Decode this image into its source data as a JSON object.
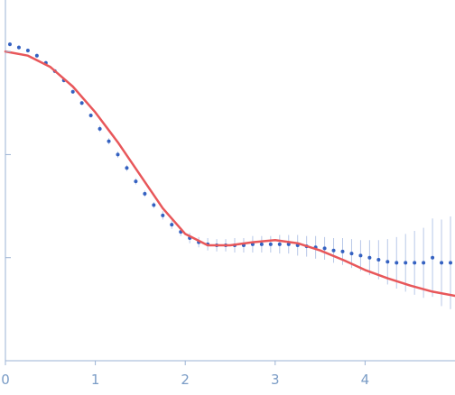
{
  "chart_data": {
    "type": "scatter",
    "title": "",
    "xlabel": "",
    "ylabel": "",
    "xlim": [
      0,
      5
    ],
    "ylim": [
      0,
      3.5
    ],
    "x_tick_labels": [
      "0",
      "1",
      "2",
      "3",
      "4"
    ],
    "x_ticks": [
      0,
      1,
      2,
      3,
      4
    ],
    "y_ticks": [
      0,
      1,
      2,
      3
    ],
    "grid": false,
    "legend": "none",
    "colors": {
      "points": "#3461c1",
      "error_bars": "#b8c8e8",
      "fit": "#e8575a",
      "axis": "#9bb3d4",
      "tick_labels": "#7a9cc6"
    },
    "series": [
      {
        "kind": "points_with_error_bars",
        "x": [
          0.05,
          0.15,
          0.25,
          0.35,
          0.45,
          0.55,
          0.65,
          0.75,
          0.85,
          0.95,
          1.05,
          1.15,
          1.25,
          1.35,
          1.45,
          1.55,
          1.65,
          1.75,
          1.85,
          1.95,
          2.05,
          2.15,
          2.25,
          2.35,
          2.45,
          2.55,
          2.65,
          2.75,
          2.85,
          2.95,
          3.05,
          3.15,
          3.25,
          3.35,
          3.45,
          3.55,
          3.65,
          3.75,
          3.85,
          3.95,
          4.05,
          4.15,
          4.25,
          4.35,
          4.45,
          4.55,
          4.65,
          4.75,
          4.85,
          4.95
        ],
        "y": [
          3.07,
          3.04,
          3.01,
          2.96,
          2.89,
          2.81,
          2.72,
          2.61,
          2.5,
          2.38,
          2.25,
          2.13,
          2.0,
          1.87,
          1.74,
          1.62,
          1.51,
          1.41,
          1.32,
          1.25,
          1.19,
          1.15,
          1.13,
          1.12,
          1.12,
          1.12,
          1.12,
          1.13,
          1.13,
          1.13,
          1.13,
          1.13,
          1.12,
          1.11,
          1.1,
          1.09,
          1.07,
          1.06,
          1.04,
          1.02,
          1.0,
          0.98,
          0.96,
          0.95,
          0.95,
          0.95,
          0.95,
          1.0,
          0.95,
          0.95
        ],
        "error": [
          0.02,
          0.02,
          0.02,
          0.02,
          0.02,
          0.02,
          0.02,
          0.02,
          0.02,
          0.02,
          0.03,
          0.03,
          0.03,
          0.03,
          0.03,
          0.03,
          0.03,
          0.04,
          0.04,
          0.04,
          0.05,
          0.05,
          0.06,
          0.06,
          0.06,
          0.07,
          0.07,
          0.08,
          0.08,
          0.08,
          0.09,
          0.09,
          0.1,
          0.1,
          0.11,
          0.11,
          0.12,
          0.13,
          0.14,
          0.15,
          0.17,
          0.19,
          0.22,
          0.25,
          0.28,
          0.31,
          0.34,
          0.38,
          0.42,
          0.45
        ]
      },
      {
        "kind": "fit_line",
        "x": [
          0,
          0.25,
          0.5,
          0.75,
          1.0,
          1.25,
          1.5,
          1.75,
          2.0,
          2.25,
          2.5,
          2.75,
          3.0,
          3.25,
          3.5,
          3.75,
          4.0,
          4.25,
          4.5,
          4.75,
          5.0
        ],
        "y": [
          3.0,
          2.96,
          2.85,
          2.66,
          2.41,
          2.12,
          1.8,
          1.48,
          1.23,
          1.12,
          1.12,
          1.15,
          1.17,
          1.14,
          1.07,
          0.98,
          0.88,
          0.8,
          0.73,
          0.67,
          0.63
        ]
      }
    ]
  }
}
